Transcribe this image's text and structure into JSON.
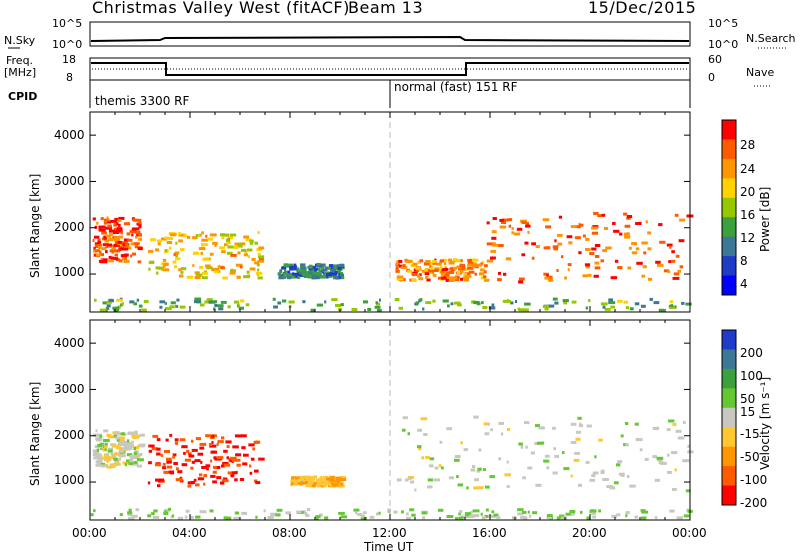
{
  "header": {
    "title": "Christmas Valley West (fitACF)",
    "beam": "Beam 13",
    "date": "15/Dec/2015"
  },
  "strip": {
    "nsky_label": "N.Sky",
    "nsky_ticks": [
      "10^5",
      "10^0"
    ],
    "nsearch_label": "N.Search",
    "nsearch_ticks": [
      "10^5",
      "10^0"
    ],
    "freq_label": "Freq.",
    "freq_unit": "[MHz]",
    "freq_ticks": [
      "18",
      "8"
    ],
    "nave_label": "Nave",
    "nave_ticks": [
      "60",
      "0"
    ],
    "cpid_label": "CPID",
    "cpid_left": "themis 3300 RF",
    "cpid_right": "normal (fast) 151 RF"
  },
  "x_axis": {
    "label": "Time UT",
    "ticks": [
      "00:00",
      "04:00",
      "08:00",
      "12:00",
      "16:00",
      "20:00",
      "00:00"
    ]
  },
  "power_panel": {
    "ylabel": "Slant Range [km]",
    "yticks": [
      "4000",
      "3000",
      "2000",
      "1000"
    ],
    "cb_label": "Power [dB]",
    "cb_ticks": [
      "28",
      "24",
      "20",
      "16",
      "12",
      "8",
      "4"
    ],
    "cb_colors": [
      "#ff0000",
      "#ff5a00",
      "#ff9600",
      "#ffd200",
      "#96c800",
      "#3ca03c",
      "#3c7896",
      "#1e3cc8",
      "#0000ff"
    ]
  },
  "velocity_panel": {
    "ylabel": "Slant Range [km]",
    "yticks": [
      "4000",
      "3000",
      "2000",
      "1000"
    ],
    "cb_label": "Velocity [m s⁻¹]",
    "cb_ticks": [
      "200",
      "100",
      "50",
      "15",
      "-15",
      "-50",
      "-100",
      "-200"
    ],
    "cb_colors": [
      "#1e3cc8",
      "#3c7896",
      "#3ca03c",
      "#64c832",
      "#c8c8c0",
      "#ffc832",
      "#ff9600",
      "#ff5a00",
      "#ff0000"
    ]
  },
  "chart_data": [
    {
      "type": "heatmap",
      "name": "power",
      "x_range_hours": [
        0,
        24
      ],
      "y_range_km": [
        180,
        4500
      ],
      "color_scale": [
        0,
        30
      ],
      "patches": [
        {
          "t0": 0.1,
          "t1": 2.0,
          "r0": 1250,
          "r1": 2200,
          "v": 28
        },
        {
          "t0": 2.3,
          "t1": 6.8,
          "r0": 900,
          "r1": 1900,
          "v": 20
        },
        {
          "t0": 7.5,
          "t1": 10.0,
          "r0": 900,
          "r1": 1200,
          "v": 8
        },
        {
          "t0": 12.2,
          "t1": 15.8,
          "r0": 850,
          "r1": 1300,
          "v": 24
        },
        {
          "t0": 15.8,
          "t1": 24.0,
          "r0": 800,
          "r1": 2300,
          "v": 26
        },
        {
          "t0": 0.0,
          "t1": 24.0,
          "r0": 200,
          "r1": 450,
          "v": 12
        }
      ]
    },
    {
      "type": "heatmap",
      "name": "velocity",
      "x_range_hours": [
        0,
        24
      ],
      "y_range_km": [
        180,
        4500
      ],
      "color_scale": [
        -200,
        200
      ],
      "patches": [
        {
          "t0": 0.1,
          "t1": 2.0,
          "r0": 1300,
          "r1": 2100,
          "v": 0
        },
        {
          "t0": 2.3,
          "t1": 6.8,
          "r0": 900,
          "r1": 2000,
          "v": -180
        },
        {
          "t0": 8.0,
          "t1": 10.0,
          "r0": 900,
          "r1": 1100,
          "v": -60
        },
        {
          "t0": 12.2,
          "t1": 24.0,
          "r0": 800,
          "r1": 2400,
          "v": 0
        },
        {
          "t0": 0.0,
          "t1": 24.0,
          "r0": 200,
          "r1": 400,
          "v": 30
        }
      ]
    }
  ]
}
